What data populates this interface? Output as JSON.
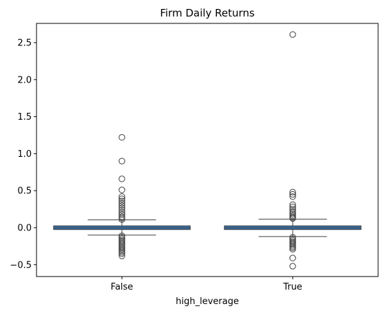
{
  "chart_data": {
    "type": "box",
    "title": "Firm Daily Returns",
    "xlabel": "high_leverage",
    "ylabel": "",
    "categories": [
      "False",
      "True"
    ],
    "ylim": [
      -0.66,
      2.76
    ],
    "yticks": [
      -0.5,
      0.0,
      0.5,
      1.0,
      1.5,
      2.0,
      2.5
    ],
    "ytick_labels": [
      "−0.5",
      "0.0",
      "0.5",
      "1.0",
      "1.5",
      "2.0",
      "2.5"
    ],
    "grid": false,
    "box_color": "#3b75af",
    "series": [
      {
        "category": "False",
        "q1": -0.025,
        "median": -0.003,
        "q3": 0.025,
        "whisker_low": -0.1,
        "whisker_high": 0.105,
        "outliers": [
          1.22,
          0.9,
          0.66,
          0.51,
          0.42,
          0.39,
          0.36,
          0.33,
          0.3,
          0.27,
          0.24,
          0.21,
          0.18,
          0.15,
          0.13,
          0.11,
          -0.11,
          -0.13,
          -0.15,
          -0.17,
          -0.19,
          -0.21,
          -0.23,
          -0.25,
          -0.27,
          -0.29,
          -0.31,
          -0.33,
          -0.35,
          -0.38
        ]
      },
      {
        "category": "True",
        "q1": -0.025,
        "median": -0.003,
        "q3": 0.025,
        "whisker_low": -0.12,
        "whisker_high": 0.115,
        "outliers": [
          2.61,
          0.48,
          0.45,
          0.42,
          0.31,
          0.28,
          0.25,
          0.22,
          0.2,
          0.18,
          0.16,
          0.14,
          0.125,
          -0.13,
          -0.15,
          -0.17,
          -0.19,
          -0.21,
          -0.23,
          -0.25,
          -0.27,
          -0.29,
          -0.41,
          -0.52
        ]
      }
    ]
  }
}
